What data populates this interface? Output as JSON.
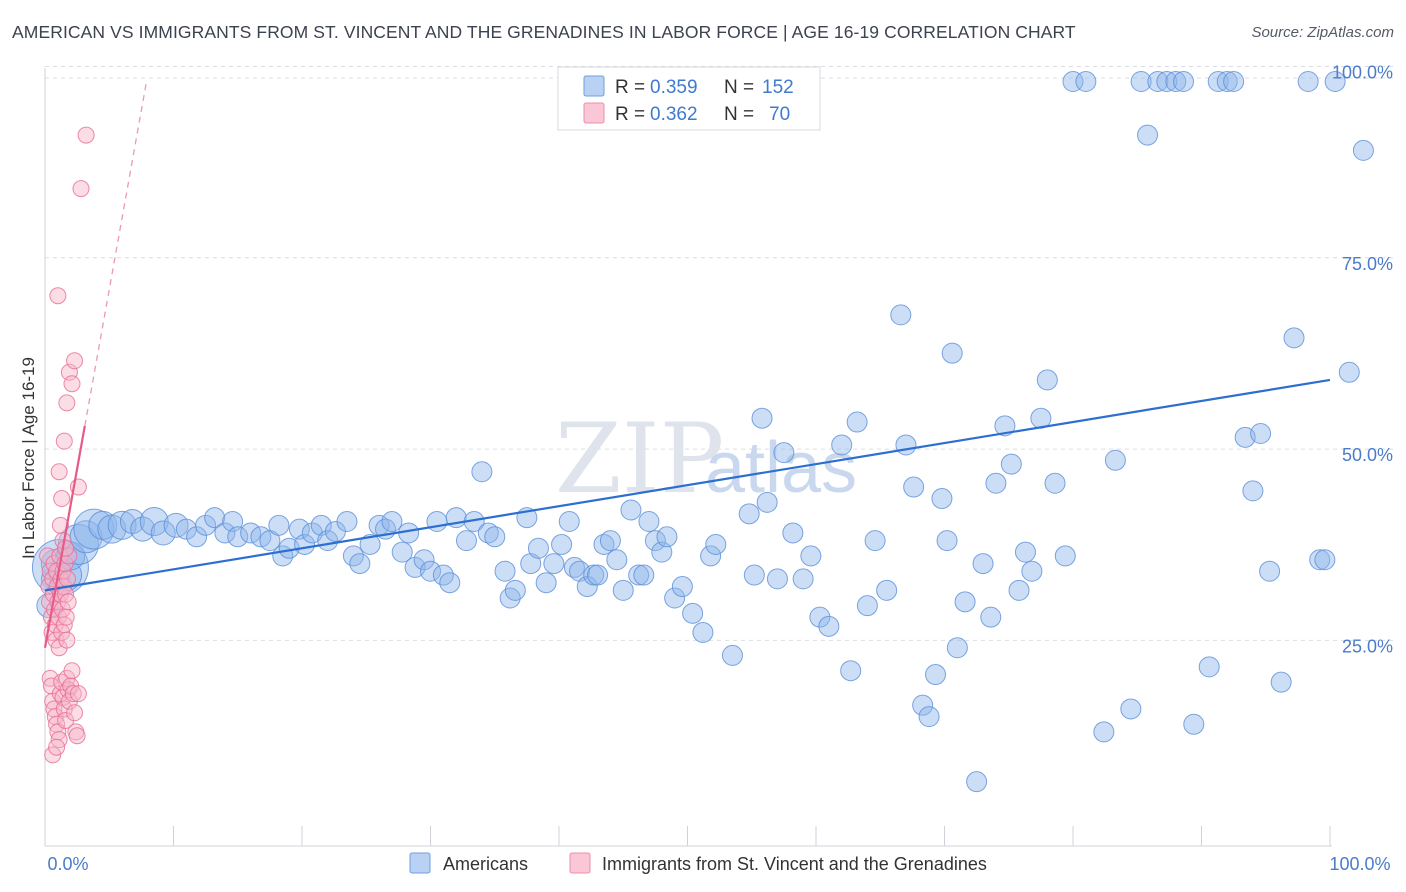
{
  "title": "AMERICAN VS IMMIGRANTS FROM ST. VINCENT AND THE GRENADINES IN LABOR FORCE | AGE 16-19 CORRELATION CHART",
  "source": "Source: ZipAtlas.com",
  "watermark": {
    "zip": "ZIP",
    "atlas": "atlas"
  },
  "legend": {
    "r_label": "R =",
    "n_label": "N =",
    "rows": [
      {
        "r": "0.359",
        "n": "152"
      },
      {
        "r": "0.362",
        "n": "70"
      }
    ]
  },
  "chart_data": {
    "type": "scatter",
    "xlabel": "",
    "ylabel": "In Labor Force | Age 16-19",
    "xlim": [
      0,
      100
    ],
    "ylim": [
      0,
      105
    ],
    "x_tick_labels": [
      "0.0%",
      "100.0%"
    ],
    "y_ticks": [
      {
        "value": 25,
        "label": "25.0%"
      },
      {
        "value": 50,
        "label": "50.0%"
      },
      {
        "value": 75,
        "label": "75.0%"
      },
      {
        "value": 100,
        "label": "100.0%"
      }
    ],
    "grid": "horizontal dashed",
    "legend_position": "top-center",
    "series": [
      {
        "name": "Americans",
        "color": "#8fb6ea",
        "edge": "#5b8fd9",
        "trend": {
          "x0": 0,
          "y0": 33.5,
          "x1": 100,
          "y1": 61,
          "color": "#2d6fd0"
        },
        "points": [
          [
            0.3,
            31.5,
            12
          ],
          [
            0.5,
            35,
            10
          ],
          [
            0.8,
            37,
            14
          ],
          [
            1.2,
            36.5,
            28
          ],
          [
            1.6,
            35.5,
            16
          ],
          [
            2,
            38,
            14
          ],
          [
            2.6,
            39.5,
            20
          ],
          [
            3.2,
            40.5,
            16
          ],
          [
            3.8,
            41.5,
            20
          ],
          [
            4.5,
            42,
            14
          ],
          [
            5.2,
            41.5,
            14
          ],
          [
            6,
            42,
            14
          ],
          [
            6.8,
            42.5,
            12
          ],
          [
            7.6,
            41.5,
            12
          ],
          [
            8.5,
            42.5,
            14
          ],
          [
            9.2,
            41,
            12
          ],
          [
            10.2,
            42,
            12
          ],
          [
            11,
            41.5,
            10
          ],
          [
            11.8,
            40.5,
            10
          ],
          [
            12.5,
            42,
            10
          ],
          [
            13.2,
            43,
            10
          ],
          [
            14,
            41,
            10
          ],
          [
            14.6,
            42.5,
            10
          ],
          [
            15,
            40.5,
            10
          ],
          [
            16,
            41,
            10
          ],
          [
            16.8,
            40.5,
            10
          ],
          [
            17.5,
            40,
            10
          ],
          [
            18.2,
            42,
            10
          ],
          [
            18.5,
            38,
            10
          ],
          [
            19,
            39,
            10
          ],
          [
            19.8,
            41.5,
            10
          ],
          [
            20.2,
            39.5,
            10
          ],
          [
            20.8,
            41,
            10
          ],
          [
            21.5,
            42,
            10
          ],
          [
            22,
            40,
            10
          ],
          [
            22.6,
            41.2,
            10
          ],
          [
            23.5,
            42.5,
            10
          ],
          [
            24,
            38,
            10
          ],
          [
            24.5,
            37,
            10
          ],
          [
            25.3,
            39.5,
            10
          ],
          [
            26,
            42,
            10
          ],
          [
            26.5,
            41.5,
            10
          ],
          [
            27,
            42.5,
            10
          ],
          [
            27.8,
            38.5,
            10
          ],
          [
            28.3,
            41,
            10
          ],
          [
            28.8,
            36.5,
            10
          ],
          [
            29.5,
            37.5,
            10
          ],
          [
            30,
            36,
            10
          ],
          [
            30.5,
            42.5,
            10
          ],
          [
            31,
            35.5,
            10
          ],
          [
            31.5,
            34.5,
            10
          ],
          [
            32,
            43,
            10
          ],
          [
            32.8,
            40,
            10
          ],
          [
            33.4,
            42.5,
            10
          ],
          [
            34,
            49,
            10
          ],
          [
            34.5,
            41,
            10
          ],
          [
            35,
            40.5,
            10
          ],
          [
            35.8,
            36,
            10
          ],
          [
            36.2,
            32.5,
            10
          ],
          [
            36.6,
            33.5,
            10
          ],
          [
            37.5,
            43,
            10
          ],
          [
            37.8,
            37,
            10
          ],
          [
            38.4,
            39,
            10
          ],
          [
            39,
            34.5,
            10
          ],
          [
            39.6,
            37,
            10
          ],
          [
            40.2,
            39.5,
            10
          ],
          [
            40.8,
            42.5,
            10
          ],
          [
            41.2,
            36.5,
            10
          ],
          [
            41.6,
            36,
            10
          ],
          [
            42.2,
            34,
            10
          ],
          [
            42.7,
            35.5,
            10
          ],
          [
            43,
            35.5,
            10
          ],
          [
            43.5,
            39.5,
            10
          ],
          [
            44,
            40,
            10
          ],
          [
            44.5,
            37.5,
            10
          ],
          [
            45,
            33.5,
            10
          ],
          [
            45.6,
            44,
            10
          ],
          [
            46.2,
            35.5,
            10
          ],
          [
            46.6,
            35.5,
            10
          ],
          [
            47,
            42.5,
            10
          ],
          [
            47.5,
            40,
            10
          ],
          [
            48,
            38.5,
            10
          ],
          [
            48.4,
            40.5,
            10
          ],
          [
            49,
            32.5,
            10
          ],
          [
            49.6,
            34,
            10
          ],
          [
            50.4,
            30.5,
            10
          ],
          [
            51.2,
            28,
            10
          ],
          [
            51.8,
            38,
            10
          ],
          [
            52.2,
            39.5,
            10
          ],
          [
            53.5,
            25,
            10
          ],
          [
            54.8,
            43.5,
            10
          ],
          [
            55.2,
            35.5,
            10
          ],
          [
            55.8,
            56,
            10
          ],
          [
            56.2,
            45,
            10
          ],
          [
            57,
            35,
            10
          ],
          [
            57.5,
            51.5,
            10
          ],
          [
            58.2,
            41,
            10
          ],
          [
            59,
            35,
            10
          ],
          [
            59.6,
            38,
            10
          ],
          [
            60.3,
            30,
            10
          ],
          [
            61,
            28.8,
            10
          ],
          [
            62,
            52.5,
            10
          ],
          [
            62.7,
            23,
            10
          ],
          [
            63.2,
            55.5,
            10
          ],
          [
            64,
            31.5,
            10
          ],
          [
            64.6,
            40,
            10
          ],
          [
            65.5,
            33.5,
            10
          ],
          [
            66.6,
            69.5,
            10
          ],
          [
            67,
            52.5,
            10
          ],
          [
            67.6,
            47,
            10
          ],
          [
            68.3,
            18.5,
            10
          ],
          [
            68.8,
            17,
            10
          ],
          [
            69.3,
            22.5,
            10
          ],
          [
            69.8,
            45.5,
            10
          ],
          [
            70.2,
            40,
            10
          ],
          [
            70.6,
            64.5,
            10
          ],
          [
            71,
            26,
            10
          ],
          [
            71.6,
            32,
            10
          ],
          [
            72.5,
            8.5,
            10
          ],
          [
            73,
            37,
            10
          ],
          [
            73.6,
            30,
            10
          ],
          [
            74,
            47.5,
            10
          ],
          [
            74.7,
            55,
            10
          ],
          [
            75.2,
            50,
            10
          ],
          [
            75.8,
            33.5,
            10
          ],
          [
            76.3,
            38.5,
            10
          ],
          [
            76.8,
            36,
            10
          ],
          [
            77.5,
            56,
            10
          ],
          [
            78,
            61,
            10
          ],
          [
            78.6,
            47.5,
            10
          ],
          [
            79.4,
            38,
            10
          ],
          [
            80,
            100,
            10
          ],
          [
            81,
            100,
            10
          ],
          [
            82.4,
            15,
            10
          ],
          [
            83.3,
            50.5,
            10
          ],
          [
            84.5,
            18,
            10
          ],
          [
            85.3,
            100,
            10
          ],
          [
            85.8,
            93,
            10
          ],
          [
            86.6,
            100,
            10
          ],
          [
            87.3,
            100,
            10
          ],
          [
            88,
            100,
            10
          ],
          [
            88.6,
            100,
            10
          ],
          [
            89.4,
            16,
            10
          ],
          [
            90.6,
            23.5,
            10
          ],
          [
            91.3,
            100,
            10
          ],
          [
            92,
            100,
            10
          ],
          [
            92.5,
            100,
            10
          ],
          [
            93.4,
            53.5,
            10
          ],
          [
            94,
            46.5,
            10
          ],
          [
            94.6,
            54,
            10
          ],
          [
            95.3,
            36,
            10
          ],
          [
            96.2,
            21.5,
            10
          ],
          [
            97.2,
            66.5,
            10
          ],
          [
            98.3,
            100,
            10
          ],
          [
            99.2,
            37.5,
            10
          ],
          [
            99.6,
            37.5,
            10
          ],
          [
            100.4,
            100,
            10
          ],
          [
            101.5,
            62,
            10
          ],
          [
            102.6,
            91,
            10
          ]
        ]
      },
      {
        "name": "Immigrants from St. Vincent and the Grenadines",
        "color": "#f7b3c7",
        "edge": "#e96d95",
        "trend": {
          "x0": 0,
          "y0": 26,
          "x1": 3.1,
          "y1": 55,
          "color": "#e85a86"
        },
        "trend_ext": {
          "x0": 3.1,
          "y0": 55,
          "x1": 7.9,
          "y1": 100,
          "color": "#e99ab2"
        },
        "points": [
          [
            0.2,
            38,
            8
          ],
          [
            0.3,
            34,
            8
          ],
          [
            0.35,
            32,
            8
          ],
          [
            0.4,
            36,
            8
          ],
          [
            0.5,
            30,
            8
          ],
          [
            0.55,
            28,
            8
          ],
          [
            0.6,
            35,
            8
          ],
          [
            0.65,
            33,
            8
          ],
          [
            0.7,
            37,
            8
          ],
          [
            0.75,
            31,
            8
          ],
          [
            0.8,
            29,
            8
          ],
          [
            0.85,
            27,
            8
          ],
          [
            0.9,
            36,
            8
          ],
          [
            0.95,
            34,
            8
          ],
          [
            1,
            32,
            8
          ],
          [
            1.05,
            30,
            8
          ],
          [
            1.1,
            26,
            8
          ],
          [
            1.15,
            38,
            8
          ],
          [
            1.2,
            33,
            8
          ],
          [
            1.25,
            35,
            8
          ],
          [
            1.3,
            28,
            8
          ],
          [
            1.35,
            31,
            8
          ],
          [
            1.4,
            36,
            8
          ],
          [
            1.45,
            34,
            8
          ],
          [
            1.5,
            29,
            8
          ],
          [
            1.55,
            37,
            8
          ],
          [
            1.6,
            33,
            8
          ],
          [
            1.65,
            30,
            8
          ],
          [
            1.7,
            27,
            8
          ],
          [
            1.75,
            35,
            8
          ],
          [
            1.8,
            32,
            8
          ],
          [
            1.85,
            38,
            8
          ],
          [
            0.4,
            22,
            8
          ],
          [
            0.5,
            21,
            8
          ],
          [
            0.6,
            19,
            8
          ],
          [
            0.7,
            18,
            8
          ],
          [
            0.8,
            17,
            8
          ],
          [
            0.9,
            16,
            8
          ],
          [
            1,
            15,
            8
          ],
          [
            1.1,
            14,
            8
          ],
          [
            1.2,
            20,
            8
          ],
          [
            1.3,
            21.5,
            8
          ],
          [
            1.4,
            19.5,
            8
          ],
          [
            1.5,
            18,
            8
          ],
          [
            1.6,
            16.5,
            8
          ],
          [
            1.7,
            22,
            8
          ],
          [
            1.8,
            20.5,
            8
          ],
          [
            1.9,
            19,
            8
          ],
          [
            2,
            21,
            8
          ],
          [
            2.1,
            23,
            8
          ],
          [
            2.2,
            20,
            8
          ],
          [
            2.3,
            17.5,
            8
          ],
          [
            2.4,
            15,
            8
          ],
          [
            2.5,
            14.5,
            8
          ],
          [
            2.6,
            20,
            8
          ],
          [
            0.6,
            12,
            8
          ],
          [
            0.9,
            13,
            8
          ],
          [
            1.1,
            49,
            8
          ],
          [
            1.3,
            45.5,
            8
          ],
          [
            1.5,
            53,
            8
          ],
          [
            1.2,
            42,
            8
          ],
          [
            1.4,
            40,
            8
          ],
          [
            1.6,
            39,
            8
          ],
          [
            1.7,
            58,
            8
          ],
          [
            1.9,
            62,
            8
          ],
          [
            2.1,
            60.5,
            8
          ],
          [
            2.3,
            63.5,
            8
          ],
          [
            1,
            72,
            8
          ],
          [
            2.6,
            47,
            8
          ],
          [
            2.8,
            86,
            8
          ],
          [
            3.2,
            93,
            8
          ]
        ]
      }
    ]
  }
}
